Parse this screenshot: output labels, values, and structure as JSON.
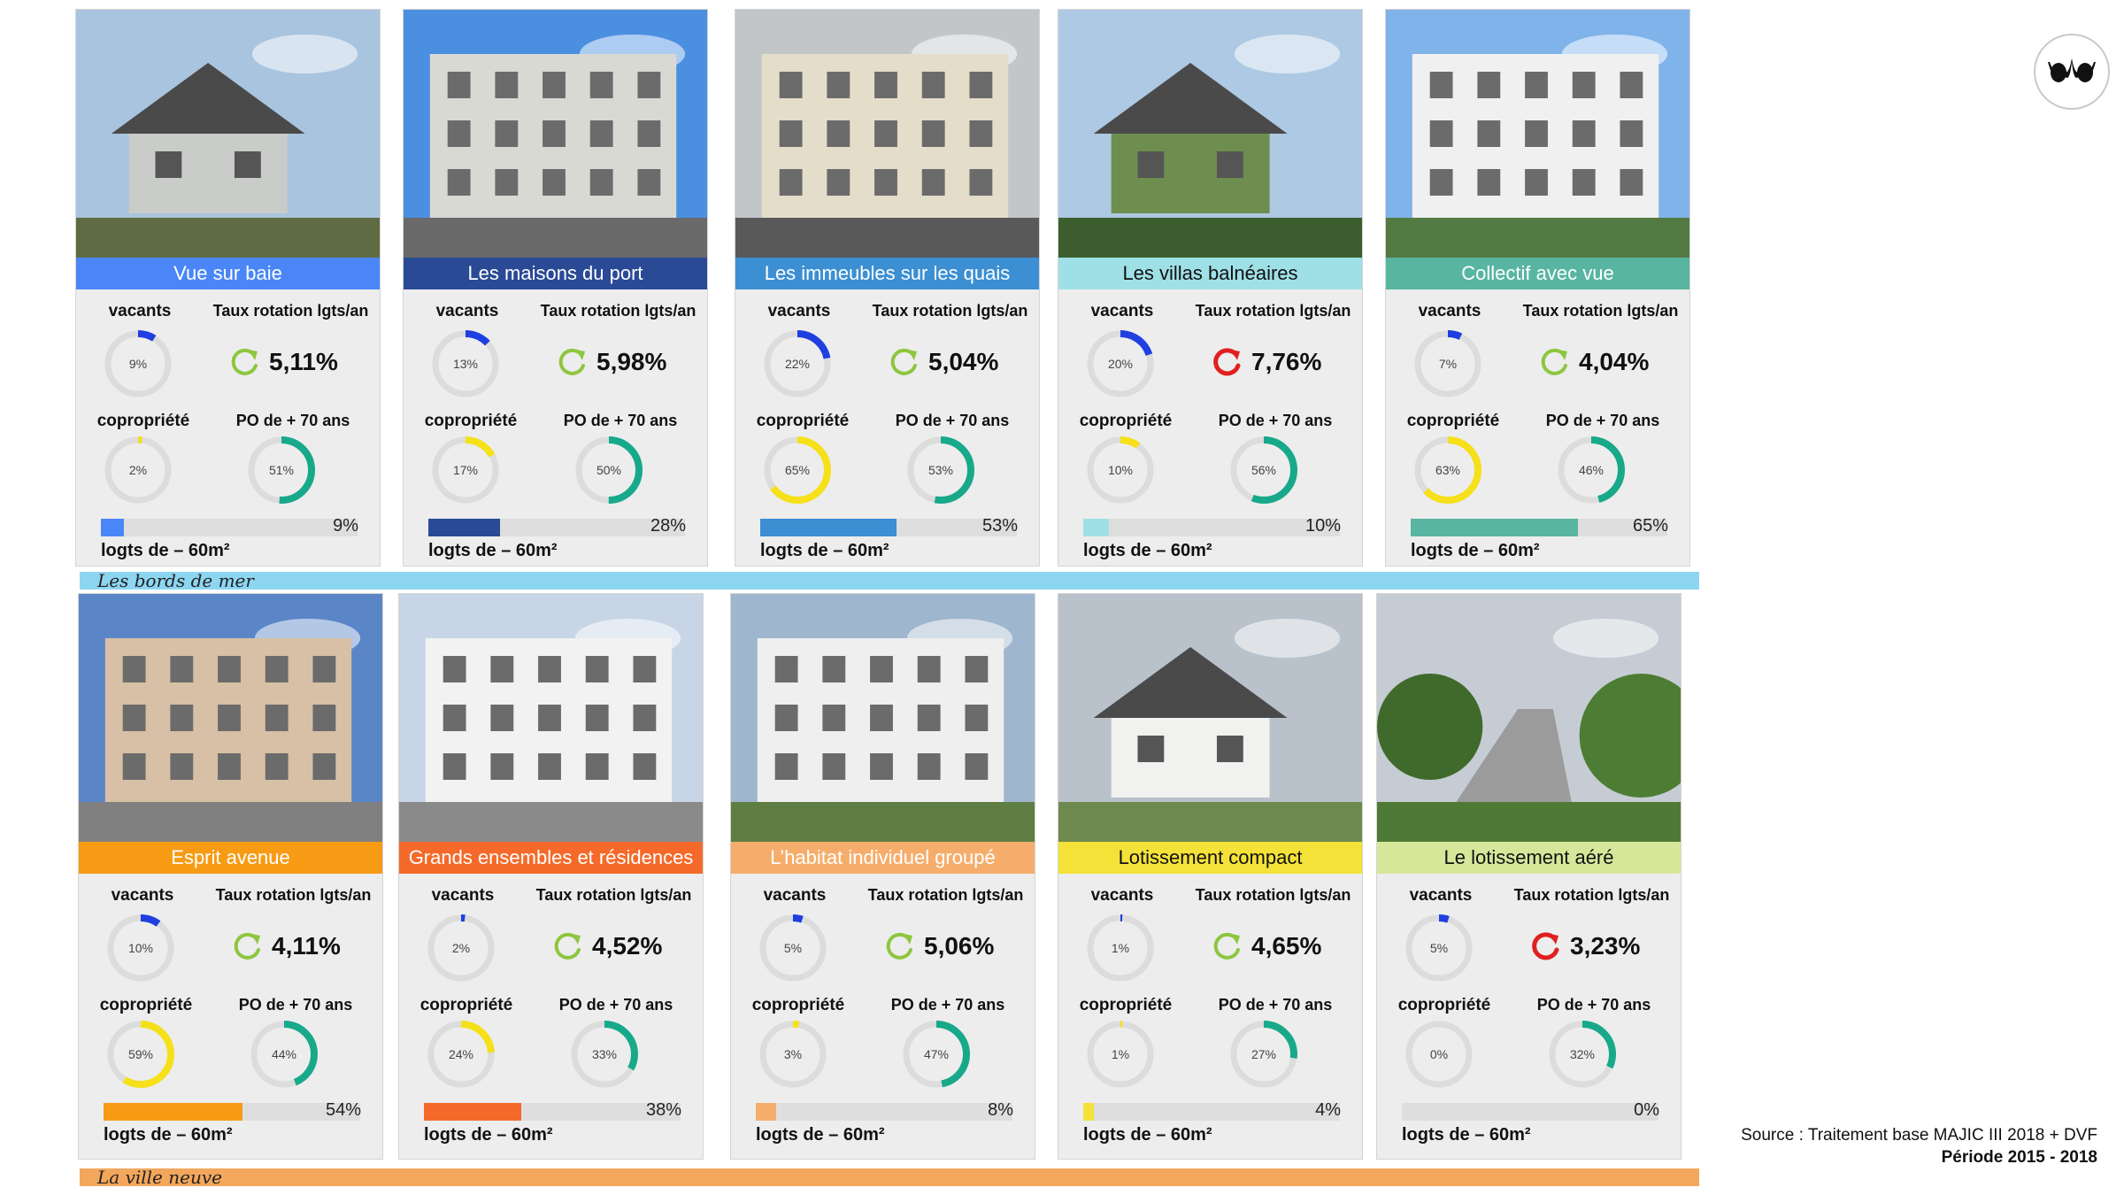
{
  "labels": {
    "vacants": "vacants",
    "rotation": "Taux rotation lgts/an",
    "copro": "copropriété",
    "po": "PO de + 70 ans",
    "small": "logts de – 60m²"
  },
  "groups": [
    {
      "label": "Les bords de mer",
      "color": "#8dd6f2"
    },
    {
      "label": "La ville neuve",
      "color": "#f3a75c"
    }
  ],
  "cards": [
    {
      "title": "Vue sur baie",
      "banner_color": "#4a86f7",
      "vacants": "9%",
      "vacants_v": 9,
      "rotation": "5,11%",
      "rotation_alert": false,
      "copro": "2%",
      "copro_v": 2,
      "po": "51%",
      "po_v": 51,
      "small": "9%",
      "small_v": 9
    },
    {
      "title": "Les maisons du port",
      "banner_color": "#2a4a96",
      "vacants": "13%",
      "vacants_v": 13,
      "rotation": "5,98%",
      "rotation_alert": false,
      "copro": "17%",
      "copro_v": 17,
      "po": "50%",
      "po_v": 50,
      "small": "28%",
      "small_v": 28
    },
    {
      "title": "Les immeubles sur les quais",
      "banner_color": "#3b8fd2",
      "vacants": "22%",
      "vacants_v": 22,
      "rotation": "5,04%",
      "rotation_alert": false,
      "copro": "65%",
      "copro_v": 65,
      "po": "53%",
      "po_v": 53,
      "small": "53%",
      "small_v": 53
    },
    {
      "title": "Les villas balnéaires",
      "banner_color": "#9fe0e6",
      "dark": true,
      "vacants": "20%",
      "vacants_v": 20,
      "rotation": "7,76%",
      "rotation_alert": true,
      "copro": "10%",
      "copro_v": 10,
      "po": "56%",
      "po_v": 56,
      "small": "10%",
      "small_v": 10
    },
    {
      "title": "Collectif avec vue",
      "banner_color": "#58b5a1",
      "vacants": "7%",
      "vacants_v": 7,
      "rotation": "4,04%",
      "rotation_alert": false,
      "copro": "63%",
      "copro_v": 63,
      "po": "46%",
      "po_v": 46,
      "small": "65%",
      "small_v": 65
    },
    {
      "title": "Esprit avenue",
      "banner_color": "#f79b14",
      "vacants": "10%",
      "vacants_v": 10,
      "rotation": "4,11%",
      "rotation_alert": false,
      "copro": "59%",
      "copro_v": 59,
      "po": "44%",
      "po_v": 44,
      "small": "54%",
      "small_v": 54
    },
    {
      "title": "Grands ensembles et résidences",
      "banner_color": "#f56a2a",
      "vacants": "2%",
      "vacants_v": 2,
      "rotation": "4,52%",
      "rotation_alert": false,
      "copro": "24%",
      "copro_v": 24,
      "po": "33%",
      "po_v": 33,
      "small": "38%",
      "small_v": 38
    },
    {
      "title": "L’habitat individuel groupé",
      "banner_color": "#f6ad6b",
      "vacants": "5%",
      "vacants_v": 5,
      "rotation": "5,06%",
      "rotation_alert": false,
      "copro": "3%",
      "copro_v": 3,
      "po": "47%",
      "po_v": 47,
      "small": "8%",
      "small_v": 8
    },
    {
      "title": "Lotissement compact",
      "banner_color": "#f4e239",
      "dark": true,
      "vacants": "1%",
      "vacants_v": 1,
      "rotation": "4,65%",
      "rotation_alert": false,
      "copro": "1%",
      "copro_v": 1,
      "po": "27%",
      "po_v": 27,
      "small": "4%",
      "small_v": 4
    },
    {
      "title": "Le lotissement aéré",
      "banner_color": "#d6e79a",
      "dark": true,
      "vacants": "5%",
      "vacants_v": 5,
      "rotation": "3,23%",
      "rotation_alert": true,
      "copro": "0%",
      "copro_v": 0,
      "po": "32%",
      "po_v": 32,
      "small": "0%",
      "small_v": 0
    }
  ],
  "colors": {
    "vacants_arc": "#1f3fe0",
    "copro_arc": "#f5e01a",
    "po_arc": "#17a98a",
    "rotation_ok": "#8dc63f",
    "rotation_alert": "#e0201f",
    "ring_bg": "#dcdcdc"
  },
  "source": {
    "line1": "Source : Traitement  base MAJIC III 2018 + DVF",
    "line2": "Période 2015 - 2018"
  }
}
